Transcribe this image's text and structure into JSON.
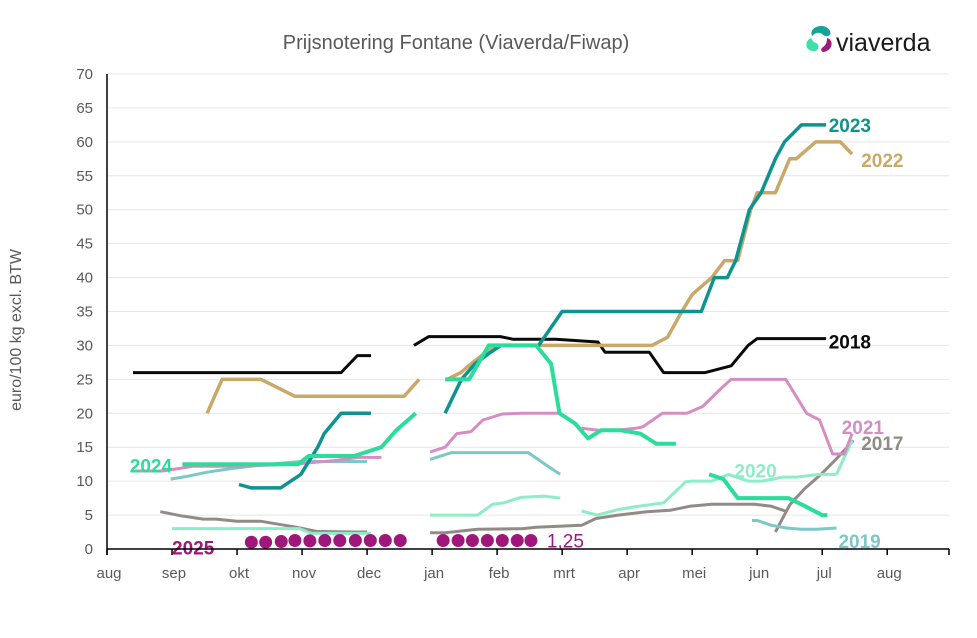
{
  "logo": {
    "text": "viaverda",
    "colors": {
      "teal": "#13a39a",
      "green": "#3ee0a6",
      "purple": "#9a1a7e"
    }
  },
  "chart_data": {
    "type": "line",
    "title": "Prijsnotering Fontane (Viaverda/Fiwap)",
    "xlabel": "",
    "ylabel": "euro/100 kg excl. BTW",
    "ylim": [
      0,
      70
    ],
    "yticks": [
      0,
      5,
      10,
      15,
      20,
      25,
      30,
      35,
      40,
      45,
      50,
      55,
      60,
      65,
      70
    ],
    "xunit": "months since 1 aug",
    "xlim": [
      0,
      12.95
    ],
    "xticks": [
      0,
      1,
      2,
      3,
      4,
      5,
      6,
      7,
      8,
      9,
      10,
      11,
      12,
      12.95
    ],
    "xtick_labels": [
      "aug",
      "sep",
      "okt",
      "nov",
      "dec",
      "jan",
      "feb",
      "mrt",
      "apr",
      "mei",
      "jun",
      "jul",
      "aug"
    ],
    "grid": true,
    "series": [
      {
        "name": "2017",
        "color": "#918a86",
        "width": 3,
        "label": "2017",
        "segments": [
          {
            "x": [
              0.82,
              1.14,
              1.48,
              1.68,
              2.0,
              2.36,
              2.92,
              3.22,
              3.76,
              4.0
            ],
            "y": [
              5.5,
              4.9,
              4.4,
              4.4,
              4.1,
              4.1,
              3.2,
              2.6,
              2.5,
              2.5
            ]
          },
          {
            "x": [
              4.97,
              5.2,
              5.7,
              6.4,
              6.6,
              7.3,
              7.52,
              7.86,
              8.3,
              8.66,
              8.96,
              9.3,
              9.6,
              9.96,
              10.22,
              10.46
            ],
            "y": [
              2.4,
              2.4,
              2.9,
              3.0,
              3.2,
              3.5,
              4.5,
              5.0,
              5.5,
              5.7,
              6.3,
              6.6,
              6.6,
              6.6,
              6.3,
              5.5
            ]
          },
          {
            "x": [
              10.28,
              10.5,
              10.73,
              10.98,
              11.2,
              11.48
            ],
            "y": [
              2.5,
              6.5,
              8.9,
              11.0,
              13.1,
              16.0
            ]
          }
        ],
        "label_anchor": [
          11.6,
          15.6
        ]
      },
      {
        "name": "2018",
        "color": "#0a0a0a",
        "width": 3,
        "label": "2018",
        "segments": [
          {
            "x": [
              0.4,
              3.6,
              3.85,
              4.06
            ],
            "y": [
              26.0,
              26.0,
              28.5,
              28.5
            ]
          },
          {
            "x": [
              4.72,
              4.95,
              5.6,
              6.05,
              6.25,
              6.6,
              6.9,
              7.55,
              7.66,
              7.86,
              8.12,
              8.34,
              8.56,
              8.76,
              9.2,
              9.6,
              9.86,
              10.0,
              10.2,
              10.22,
              10.46,
              10.8,
              11.0,
              11.06
            ],
            "y": [
              30.0,
              31.3,
              31.3,
              31.3,
              30.9,
              30.9,
              30.9,
              30.5,
              29.0,
              29.0,
              29.0,
              29.0,
              26.0,
              26.0,
              26.0,
              27.0,
              30.0,
              31.0,
              31.0,
              31.0,
              31.0,
              31.0,
              31.0,
              31.0
            ]
          }
        ],
        "label_anchor": [
          11.1,
          30.6
        ]
      },
      {
        "name": "2019",
        "color": "#7cc8c8",
        "width": 3,
        "label": "2019",
        "segments": [
          {
            "x": [
              0.98,
              1.23,
              1.53,
              1.88,
              2.3,
              2.62,
              2.98,
              3.4,
              3.88,
              4.0
            ],
            "y": [
              10.3,
              10.7,
              11.3,
              11.8,
              12.3,
              12.6,
              12.9,
              12.9,
              12.9,
              12.9
            ]
          },
          {
            "x": [
              4.97,
              5.3,
              5.76,
              6.48,
              6.75,
              6.97
            ],
            "y": [
              13.2,
              14.2,
              14.2,
              14.2,
              12.4,
              11.0
            ]
          },
          {
            "x": [
              9.92,
              10.0,
              10.22,
              10.45,
              10.68,
              10.92,
              11.22
            ],
            "y": [
              4.2,
              4.2,
              3.5,
              3.1,
              2.9,
              2.9,
              3.1
            ]
          }
        ],
        "label_anchor": [
          11.25,
          1.2
        ]
      },
      {
        "name": "2020",
        "color": "#8eecc9",
        "width": 3,
        "label": "2020",
        "segments": [
          {
            "x": [
              1.0,
              1.5,
              2.0,
              2.5,
              2.96,
              3.14,
              3.62,
              4.0,
              4.06
            ],
            "y": [
              3.0,
              3.0,
              3.0,
              3.0,
              3.0,
              2.3,
              2.3,
              2.3,
              2.3
            ]
          },
          {
            "x": [
              4.97,
              5.7,
              5.93,
              6.1,
              6.36,
              6.72,
              6.97
            ],
            "y": [
              5.0,
              5.0,
              6.6,
              6.8,
              7.6,
              7.8,
              7.5
            ]
          },
          {
            "x": [
              7.3,
              7.54,
              7.86,
              8.16,
              8.56,
              8.9,
              9.0,
              9.3,
              9.56,
              9.86,
              10.08,
              10.4,
              10.6,
              10.96,
              11.22
            ],
            "y": [
              5.6,
              5.0,
              5.8,
              6.3,
              6.8,
              9.9,
              10.0,
              10.0,
              11.0,
              10.0,
              10.0,
              10.6,
              10.6,
              11.0,
              11.0
            ]
          },
          {
            "x": [
              11.22,
              11.46
            ],
            "y": [
              11.0,
              16.0
            ]
          }
        ],
        "label_anchor": [
          9.65,
          11.6
        ]
      },
      {
        "name": "2021",
        "color": "#d58dc3",
        "width": 3,
        "label": "2021",
        "segments": [
          {
            "x": [
              0.43,
              0.86,
              1.33,
              2.0,
              2.86,
              3.47,
              3.86,
              4.22
            ],
            "y": [
              11.5,
              11.5,
              12.2,
              12.2,
              12.5,
              13.0,
              13.5,
              13.5
            ]
          },
          {
            "x": [
              4.97,
              5.2,
              5.38,
              5.6,
              5.78,
              6.08,
              6.38,
              6.59,
              6.97
            ],
            "y": [
              14.3,
              15.0,
              17.0,
              17.3,
              19.0,
              19.9,
              20.0,
              20.0,
              20.0
            ]
          },
          {
            "x": [
              7.3,
              7.56,
              7.82,
              8.14,
              8.24,
              8.54,
              8.8,
              8.92,
              9.16,
              9.46,
              9.6,
              9.9,
              10.2,
              10.44,
              10.6,
              10.76,
              10.96,
              11.16,
              11.34,
              11.46
            ],
            "y": [
              17.8,
              17.5,
              17.5,
              17.8,
              18.0,
              20.0,
              20.0,
              20.0,
              21.0,
              23.8,
              25.0,
              25.0,
              25.0,
              25.0,
              22.5,
              20.0,
              19.0,
              14.0,
              14.0,
              17.0
            ]
          }
        ],
        "label_anchor": [
          11.3,
          18.0
        ]
      },
      {
        "name": "2022",
        "color": "#c9a86a",
        "width": 3.5,
        "label": "2022",
        "segments": [
          {
            "x": [
              1.54,
              1.77,
              2.37,
              2.89,
              3.34,
              4.57,
              4.8
            ],
            "y": [
              20.0,
              25.0,
              25.0,
              22.5,
              22.5,
              22.5,
              25.0
            ]
          },
          {
            "x": [
              5.23,
              5.44,
              5.6,
              5.8,
              6.0,
              6.2,
              6.6,
              8.0,
              8.15,
              8.38,
              8.62,
              8.84,
              9.0,
              9.3,
              9.5,
              9.7,
              9.9,
              10.0,
              10.28,
              10.5,
              10.6,
              10.9,
              11.06,
              11.28,
              11.46
            ],
            "y": [
              25.0,
              26.0,
              27.3,
              28.8,
              30.0,
              30.0,
              30.0,
              30.0,
              30.0,
              30.0,
              31.2,
              35.0,
              37.5,
              40.0,
              42.5,
              42.5,
              50.0,
              52.5,
              52.5,
              57.5,
              57.5,
              60.0,
              60.0,
              60.0,
              58.2
            ]
          }
        ],
        "label_anchor": [
          11.6,
          57.3
        ]
      },
      {
        "name": "2023",
        "color": "#0e9390",
        "width": 3.5,
        "label": "2023",
        "segments": [
          {
            "x": [
              2.03,
              2.22,
              2.67,
              2.98,
              3.24,
              3.34,
              3.6,
              4.06
            ],
            "y": [
              9.5,
              9.0,
              9.0,
              11.0,
              15.0,
              17.0,
              20.0,
              20.0
            ]
          },
          {
            "x": [
              5.2,
              5.45,
              5.66,
              5.87,
              6.06,
              6.4,
              6.64,
              7.0,
              8.3,
              8.8,
              9.14,
              9.34,
              9.54,
              9.67,
              9.88,
              10.06,
              10.28,
              10.42,
              10.68,
              10.88,
              11.06
            ],
            "y": [
              20.0,
              25.0,
              27.3,
              28.8,
              30.0,
              30.0,
              30.0,
              35.0,
              35.0,
              35.0,
              35.0,
              40.0,
              40.0,
              42.5,
              50.0,
              52.5,
              57.5,
              60.0,
              62.5,
              62.5,
              62.5
            ]
          }
        ],
        "label_anchor": [
          11.1,
          62.5
        ]
      },
      {
        "name": "2024",
        "color": "#2cdc9a",
        "width": 4,
        "label": "2024",
        "segments": [
          {
            "x": [
              1.16,
              2.1,
              2.94,
              3.1,
              3.41,
              3.8,
              4.22,
              4.45,
              4.75
            ],
            "y": [
              12.5,
              12.5,
              12.5,
              13.7,
              13.7,
              13.7,
              15.0,
              17.5,
              20.0
            ]
          },
          {
            "x": [
              5.2,
              5.57,
              5.87,
              6.1,
              6.35,
              6.6,
              6.83,
              6.96,
              7.2,
              7.4,
              7.6,
              7.9,
              8.2,
              8.45,
              8.75
            ],
            "y": [
              25.0,
              25.0,
              30.0,
              30.0,
              30.0,
              30.0,
              27.3,
              20.0,
              18.5,
              16.3,
              17.5,
              17.5,
              17.0,
              15.5,
              15.5
            ]
          },
          {
            "x": [
              9.26,
              9.48,
              9.7,
              9.96,
              10.2,
              10.48,
              10.74,
              11.0,
              11.08
            ],
            "y": [
              11.0,
              10.3,
              7.5,
              7.5,
              7.5,
              7.5,
              6.3,
              5.0,
              5.0
            ]
          }
        ],
        "label_anchor": [
          0.35,
          12.3
        ]
      },
      {
        "name": "2025",
        "color": "#a0177c",
        "width": 0,
        "marker": "dot",
        "label": "2025",
        "segments": [
          {
            "x": [
              2.22,
              2.44,
              2.68,
              2.89,
              3.12,
              3.35,
              3.58,
              3.82,
              4.05,
              4.28,
              4.51
            ],
            "y": [
              1.0,
              1.0,
              1.1,
              1.25,
              1.2,
              1.25,
              1.25,
              1.25,
              1.25,
              1.25,
              1.25
            ]
          },
          {
            "x": [
              5.17,
              5.4,
              5.62,
              5.85,
              6.08,
              6.31,
              6.52
            ],
            "y": [
              1.25,
              1.25,
              1.25,
              1.25,
              1.25,
              1.25,
              1.25
            ]
          }
        ],
        "label_anchor": [
          1.0,
          0.2
        ],
        "value_label": "1,25"
      }
    ]
  }
}
